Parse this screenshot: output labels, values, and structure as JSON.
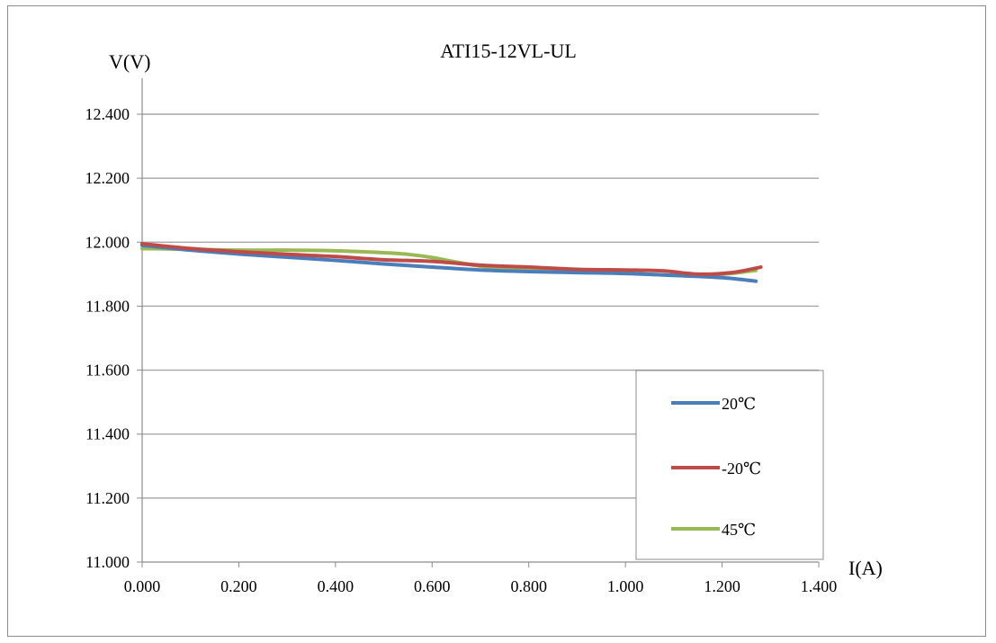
{
  "chart_data": {
    "type": "line",
    "title": "ATI15-12VL-UL",
    "ylabel": "V(V)",
    "xlabel": "I(A)",
    "xlim": [
      0.0,
      1.4
    ],
    "ylim": [
      11.0,
      12.4
    ],
    "xticks": [
      "0.000",
      "0.200",
      "0.400",
      "0.600",
      "0.800",
      "1.000",
      "1.200",
      "1.400"
    ],
    "xtick_values": [
      0.0,
      0.2,
      0.4,
      0.6,
      0.8,
      1.0,
      1.2,
      1.4
    ],
    "yticks": [
      "11.000",
      "11.200",
      "11.400",
      "11.600",
      "11.800",
      "12.000",
      "12.200",
      "12.400"
    ],
    "ytick_values": [
      11.0,
      11.2,
      11.4,
      11.6,
      11.8,
      12.0,
      12.2,
      12.4
    ],
    "grid": "horizontal",
    "legend_position": "bottom-right",
    "series": [
      {
        "name": "20℃",
        "color": "#4a7ebb",
        "x": [
          0.0,
          0.1,
          0.2,
          0.3,
          0.4,
          0.5,
          0.6,
          0.7,
          0.8,
          0.9,
          1.0,
          1.1,
          1.2,
          1.27
        ],
        "y": [
          11.99,
          11.975,
          11.963,
          11.953,
          11.943,
          11.932,
          11.922,
          11.913,
          11.908,
          11.905,
          11.902,
          11.896,
          11.889,
          11.878
        ]
      },
      {
        "name": "-20℃",
        "color": "#be4b48",
        "x": [
          0.0,
          0.1,
          0.2,
          0.3,
          0.4,
          0.5,
          0.6,
          0.7,
          0.8,
          0.9,
          1.0,
          1.08,
          1.15,
          1.22,
          1.28
        ],
        "y": [
          11.995,
          11.98,
          11.97,
          11.962,
          11.955,
          11.945,
          11.94,
          11.928,
          11.922,
          11.915,
          11.913,
          11.91,
          11.9,
          11.905,
          11.922
        ]
      },
      {
        "name": "45℃",
        "color": "#98b954",
        "x": [
          0.0,
          0.1,
          0.2,
          0.3,
          0.4,
          0.5,
          0.55,
          0.6,
          0.7,
          0.8,
          0.9,
          1.0,
          1.1,
          1.2,
          1.27
        ],
        "y": [
          11.98,
          11.978,
          11.975,
          11.975,
          11.973,
          11.967,
          11.962,
          11.952,
          11.925,
          11.912,
          11.907,
          11.903,
          11.897,
          11.9,
          11.912
        ]
      }
    ]
  }
}
